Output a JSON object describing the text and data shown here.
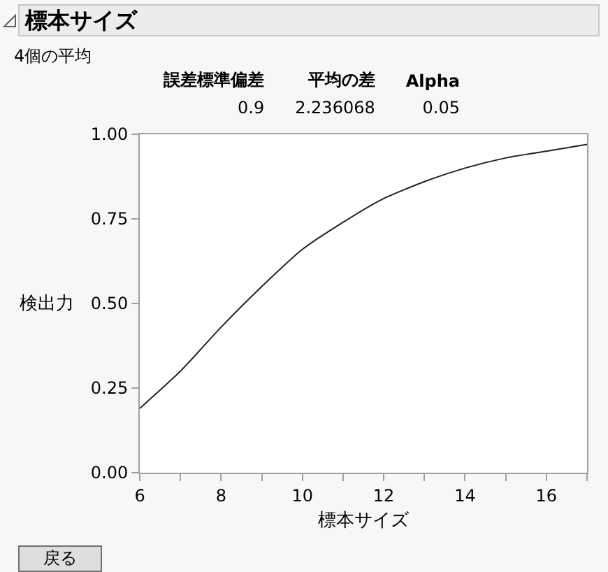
{
  "chart_data": {
    "type": "line",
    "title": "標本サイズ",
    "subtitle": "4個の平均",
    "xlabel": "標本サイズ",
    "ylabel": "検出力",
    "annotations": [
      "誤差標準偏差",
      "平均の差",
      "Alpha",
      "0.9",
      "2.236068",
      "0.05",
      "戻る"
    ],
    "x": [
      6,
      7,
      8,
      9,
      10,
      11,
      12,
      13,
      14,
      15,
      16,
      17
    ],
    "series": [
      {
        "color": "#222222",
        "values": [
          0.19,
          0.3,
          0.43,
          0.55,
          0.66,
          0.74,
          0.81,
          0.86,
          0.9,
          0.93,
          0.95,
          0.97
        ]
      }
    ],
    "xlim": [
      6,
      17
    ],
    "ylim": [
      0,
      1
    ],
    "xticks": [
      6,
      {
        "value": 7,
        "label": null
      },
      8,
      {
        "value": 9,
        "label": null
      },
      10,
      {
        "value": 11,
        "label": null
      },
      12,
      {
        "value": 13,
        "label": null
      },
      14,
      {
        "value": 15,
        "label": null
      },
      16,
      {
        "value": 17,
        "label": null
      }
    ],
    "yticks": [
      {
        "value": 0,
        "label": "0.00"
      },
      {
        "value": 0.25,
        "label": "0.25"
      },
      {
        "value": 0.5,
        "label": "0.50"
      },
      {
        "value": 0.75,
        "label": "0.75"
      },
      {
        "value": 1,
        "label": "1.00"
      }
    ],
    "grid": false,
    "line_style": "solid"
  }
}
